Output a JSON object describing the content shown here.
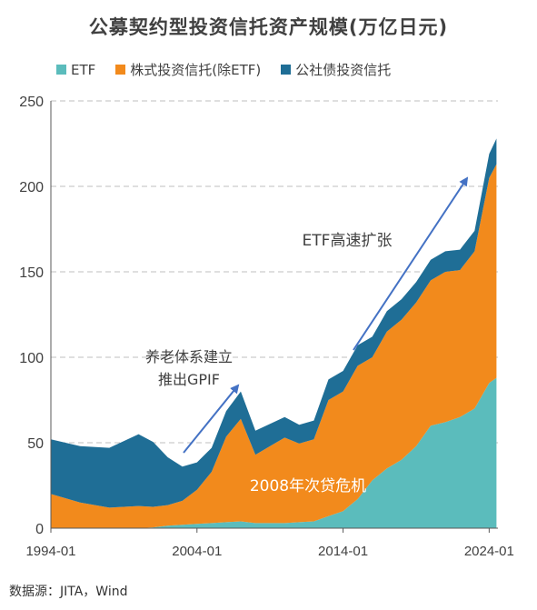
{
  "chart_data": {
    "type": "area",
    "title": "公募契约型投资信托资产规模(万亿日元)",
    "stacked": true,
    "x_ticks": [
      "1994-01",
      "2004-01",
      "2014-01",
      "2024-01"
    ],
    "ylim": [
      0,
      250
    ],
    "y_ticks": [
      0,
      50,
      100,
      150,
      200,
      250
    ],
    "grid": "horizontal dashed",
    "legend_position": "top",
    "x": [
      1994,
      1996,
      1998,
      2000,
      2001,
      2002,
      2003,
      2004,
      2005,
      2006,
      2007,
      2008,
      2009,
      2010,
      2011,
      2012,
      2013,
      2014,
      2015,
      2016,
      2017,
      2018,
      2019,
      2020,
      2021,
      2022,
      2023,
      2024,
      2024.5
    ],
    "series": [
      {
        "name": "ETF",
        "color": "#5bbcbc",
        "values": [
          0,
          0,
          0,
          0,
          0.5,
          1.5,
          2,
          2.5,
          3,
          3.5,
          4,
          3,
          3,
          3,
          3.5,
          4,
          7,
          10,
          17,
          28,
          35,
          40,
          48,
          60,
          62,
          65,
          70,
          85,
          88
        ]
      },
      {
        "name": "株式投资信托(除ETF)",
        "color": "#f28a1c",
        "values": [
          20,
          15,
          12,
          13,
          12,
          12,
          14,
          20,
          30,
          50,
          60,
          40,
          45,
          50,
          46,
          48,
          68,
          70,
          78,
          72,
          80,
          82,
          84,
          85,
          88,
          86,
          92,
          120,
          125
        ]
      },
      {
        "name": "公社债投资信托",
        "color": "#1f6e96",
        "values": [
          32,
          33,
          35,
          42,
          38,
          28,
          20,
          16,
          14,
          15,
          16,
          14,
          13,
          12,
          11,
          11,
          12,
          12,
          12,
          12,
          12,
          12,
          12,
          12,
          12,
          12,
          12,
          14,
          15
        ]
      }
    ],
    "annotations": [
      {
        "text_lines": [
          "养老体系建立",
          "推出GPIF"
        ]
      },
      {
        "text_lines": [
          "ETF高速扩张"
        ]
      },
      {
        "text_lines": [
          "2008年次贷危机"
        ]
      }
    ]
  },
  "footer": {
    "source": "数据源：JITA，Wind"
  },
  "icons": {
    "arrow_color": "#4472c4",
    "grid_color": "#bfbfbf"
  }
}
